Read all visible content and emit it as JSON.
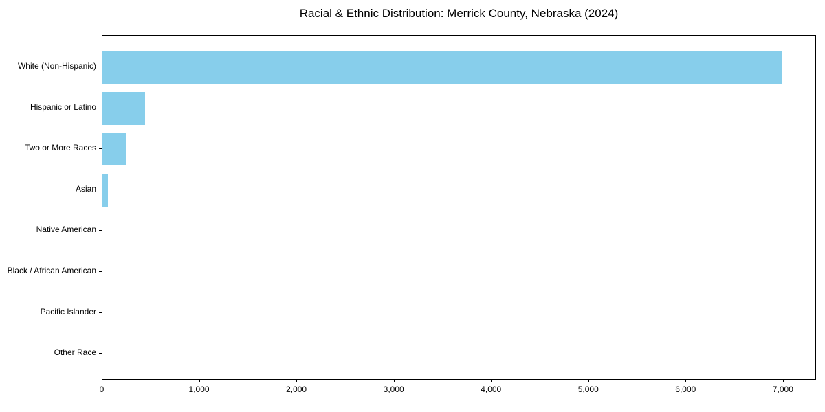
{
  "chart_data": {
    "type": "bar",
    "orientation": "horizontal",
    "title": "Racial & Ethnic Distribution: Merrick County, Nebraska (2024)",
    "categories": [
      "White (Non-Hispanic)",
      "Hispanic or Latino",
      "Two or More Races",
      "Asian",
      "Native American",
      "Black / African American",
      "Pacific Islander",
      "Other Race"
    ],
    "values": [
      6990,
      435,
      245,
      60,
      0,
      0,
      0,
      0
    ],
    "xlabel": "",
    "ylabel": "",
    "xlim": [
      0,
      7340
    ],
    "x_ticks": [
      0,
      1000,
      2000,
      3000,
      4000,
      5000,
      6000,
      7000
    ],
    "x_tick_labels": [
      "0",
      "1,000",
      "2,000",
      "3,000",
      "4,000",
      "5,000",
      "6,000",
      "7,000"
    ],
    "bar_color": "#87CEEB",
    "axis_color": "#000000",
    "text_color": "#000000",
    "background_color": "#ffffff",
    "grid": false,
    "legend": null
  }
}
